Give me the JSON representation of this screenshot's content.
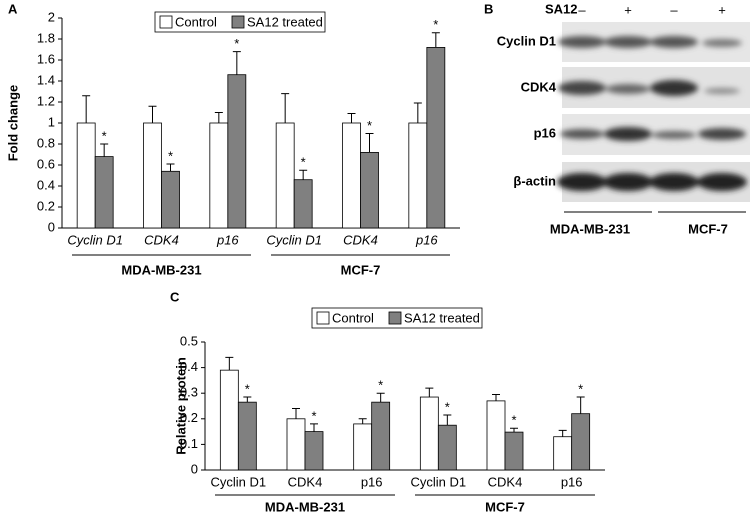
{
  "chart_data": [
    {
      "type": "bar",
      "panel_label": "A",
      "ylabel": "Fold change",
      "category_style": "italic",
      "categories": [
        "Cyclin D1",
        "CDK4",
        "p16",
        "Cyclin D1",
        "CDK4",
        "p16"
      ],
      "groups": [
        "MDA-MB-231",
        "MCF-7"
      ],
      "series": [
        {
          "name": "Control",
          "color": "#ffffff",
          "values": [
            1,
            1,
            1,
            1,
            1,
            1
          ],
          "errors": [
            0.26,
            0.16,
            0.1,
            0.28,
            0.09,
            0.19
          ]
        },
        {
          "name": "SA12 treated",
          "color": "#808080",
          "values": [
            0.68,
            0.54,
            1.46,
            0.46,
            0.72,
            1.72
          ],
          "errors": [
            0.12,
            0.07,
            0.22,
            0.09,
            0.18,
            0.14
          ],
          "markers": [
            "*",
            "*",
            "*",
            "*",
            "*",
            "*"
          ]
        }
      ],
      "ylim": [
        0,
        2
      ],
      "yticks": [
        0,
        0.2,
        0.4,
        0.6,
        0.8,
        1,
        1.2,
        1.4,
        1.6,
        1.8,
        2
      ]
    },
    {
      "type": "bar",
      "panel_label": "C",
      "ylabel": "Relative protein",
      "category_style": "normal",
      "categories": [
        "Cyclin D1",
        "CDK4",
        "p16",
        "Cyclin D1",
        "CDK4",
        "p16"
      ],
      "groups": [
        "MDA-MB-231",
        "MCF-7"
      ],
      "series": [
        {
          "name": "Control",
          "color": "#ffffff",
          "values": [
            0.39,
            0.2,
            0.18,
            0.285,
            0.27,
            0.13
          ],
          "errors": [
            0.05,
            0.04,
            0.02,
            0.035,
            0.025,
            0.025
          ]
        },
        {
          "name": "SA12 treated",
          "color": "#808080",
          "values": [
            0.265,
            0.15,
            0.265,
            0.175,
            0.148,
            0.22
          ],
          "errors": [
            0.02,
            0.03,
            0.035,
            0.04,
            0.015,
            0.065
          ],
          "markers": [
            "*",
            "*",
            "*",
            "*",
            "*",
            "*"
          ]
        }
      ],
      "ylim": [
        0,
        0.5
      ],
      "yticks": [
        0,
        0.1,
        0.2,
        0.3,
        0.4,
        0.5
      ]
    }
  ],
  "blot": {
    "panel_label": "B",
    "treatment": "SA12",
    "lanes": [
      "–",
      "+",
      "–",
      "+"
    ],
    "rows": [
      "Cyclin D1",
      "CDK4",
      "p16",
      "β-actin"
    ],
    "cell_lines": [
      "MDA-MB-231",
      "MCF-7"
    ]
  }
}
